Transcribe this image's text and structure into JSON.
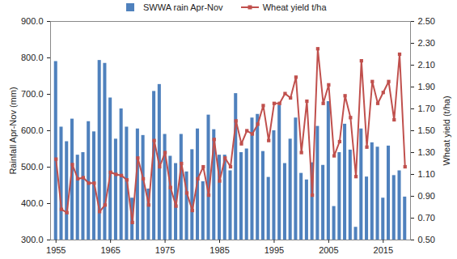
{
  "chart_data": {
    "type": "bar_line",
    "legend": "top",
    "grid": false,
    "ylabel": "Rainfall Apr-Nov (mm)",
    "y2label": "Wheat yield (t/ha)",
    "x": [
      1955,
      1956,
      1957,
      1958,
      1959,
      1960,
      1961,
      1962,
      1963,
      1964,
      1965,
      1966,
      1967,
      1968,
      1969,
      1970,
      1971,
      1972,
      1973,
      1974,
      1975,
      1976,
      1977,
      1978,
      1979,
      1980,
      1981,
      1982,
      1983,
      1984,
      1985,
      1986,
      1987,
      1988,
      1989,
      1990,
      1991,
      1992,
      1993,
      1994,
      1995,
      1996,
      1997,
      1998,
      1999,
      2000,
      2001,
      2002,
      2003,
      2004,
      2005,
      2006,
      2007,
      2008,
      2009,
      2010,
      2011,
      2012,
      2013,
      2014,
      2015,
      2016,
      2017,
      2018,
      2019
    ],
    "xlim": [
      1954,
      2020
    ],
    "xticks": [
      1955,
      1965,
      1975,
      1985,
      1995,
      2005,
      2015
    ],
    "ylim": [
      300,
      900
    ],
    "yticks": [
      {
        "value": 300,
        "label": "300.0"
      },
      {
        "value": 400,
        "label": "400.0"
      },
      {
        "value": 500,
        "label": "500.0"
      },
      {
        "value": 600,
        "label": "600.0"
      },
      {
        "value": 700,
        "label": "700.0"
      },
      {
        "value": 800,
        "label": "800.0"
      },
      {
        "value": 900,
        "label": "900.0"
      }
    ],
    "y2lim": [
      0.5,
      2.5
    ],
    "y2ticks": [
      {
        "value": 0.5,
        "label": "0.50"
      },
      {
        "value": 0.7,
        "label": "0.70"
      },
      {
        "value": 0.9,
        "label": "0.90"
      },
      {
        "value": 1.1,
        "label": "1.10"
      },
      {
        "value": 1.3,
        "label": "1.30"
      },
      {
        "value": 1.5,
        "label": "1.50"
      },
      {
        "value": 1.7,
        "label": "1.70"
      },
      {
        "value": 1.9,
        "label": "1.90"
      },
      {
        "value": 2.1,
        "label": "2.10"
      },
      {
        "value": 2.3,
        "label": "2.30"
      },
      {
        "value": 2.5,
        "label": "2.50"
      }
    ],
    "series": [
      {
        "name": "SWWA rain Apr-Nov",
        "type": "bar",
        "color": "#4f81bd",
        "values": [
          790,
          610,
          570,
          632,
          533,
          540,
          625,
          597,
          793,
          785,
          690,
          577,
          660,
          610,
          415,
          605,
          587,
          440,
          708,
          727,
          590,
          530,
          510,
          590,
          487,
          548,
          605,
          460,
          643,
          603,
          533,
          533,
          490,
          702,
          540,
          550,
          635,
          645,
          543,
          472,
          600,
          670,
          510,
          577,
          635,
          483,
          465,
          512,
          612,
          505,
          680,
          392,
          540,
          618,
          547,
          335,
          605,
          473,
          567,
          555,
          415,
          558,
          477,
          490,
          418
        ]
      },
      {
        "name": "Wheat yield t/ha",
        "type": "line",
        "axis": "y2",
        "color": "#c0504d",
        "marker": "square",
        "values": [
          1.24,
          0.78,
          0.75,
          1.19,
          1.06,
          1.07,
          1.02,
          1.02,
          0.76,
          0.82,
          1.12,
          1.1,
          1.09,
          1.05,
          0.66,
          1.25,
          1.06,
          0.82,
          1.41,
          1.17,
          1.3,
          0.98,
          0.81,
          1.2,
          0.93,
          0.77,
          1.06,
          1.17,
          0.91,
          1.42,
          1.04,
          1.25,
          1.17,
          1.59,
          1.38,
          1.5,
          1.47,
          1.56,
          1.73,
          1.41,
          1.75,
          1.75,
          1.84,
          1.8,
          1.99,
          1.3,
          1.77,
          0.91,
          2.25,
          1.75,
          1.92,
          1.27,
          1.4,
          1.82,
          1.62,
          1.08,
          2.14,
          1.35,
          1.95,
          1.75,
          1.85,
          1.95,
          1.6,
          2.2,
          1.17
        ]
      }
    ]
  }
}
